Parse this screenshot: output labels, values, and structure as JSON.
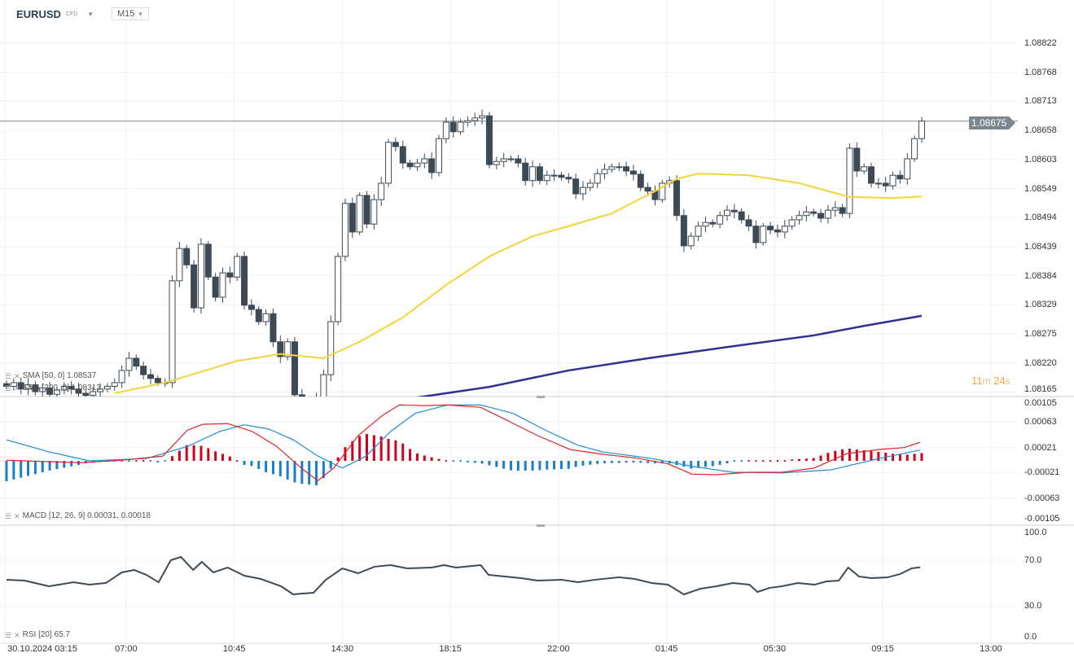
{
  "header": {
    "symbol": "EURUSD",
    "type": "CFD",
    "timeframe": "M15"
  },
  "price_axis": [
    "1.08822",
    "1.08768",
    "1.08713",
    "1.08658",
    "1.08603",
    "1.08549",
    "1.08494",
    "1.08439",
    "1.08384",
    "1.08329",
    "1.08275",
    "1.08220",
    "1.08165"
  ],
  "current_price": "1.08675",
  "current_price_value": 1.08675,
  "countdown": {
    "min": "11",
    "min_unit": "m",
    "sec": "24",
    "sec_unit": "s"
  },
  "indicators": {
    "sma50": "SMA [50, 0] 1.08537",
    "sma200": "SMA [200, 0] 1.08313",
    "macd": "MACD [12, 26, 9] 0.00031,  0.00018",
    "rsi": "RSI [20] 65.7"
  },
  "macd_axis": [
    "0.00105",
    "0.00063",
    "0.00021",
    "-0.00021",
    "-0.00063",
    "-0.00105"
  ],
  "rsi_axis": [
    "100.0",
    "70.0",
    "30.0",
    "0.0"
  ],
  "time_axis": [
    "30.10.2024  03:15",
    "07:00",
    "10:45",
    "14:30",
    "18:15",
    "22:00",
    "01:45",
    "05:30",
    "09:15",
    "13:00"
  ],
  "colors": {
    "bull": "#ffffff",
    "bear": "#3d4a55",
    "sma50": "#f5d33a",
    "sma200": "#2e3192",
    "macd": "#e0262a",
    "signal": "#1f8ad6",
    "hist_pos": "#d0021b",
    "hist_neg": "#1a7fc9",
    "rsi": "#3d4a55"
  },
  "chart_data": {
    "type": "candlestick",
    "closes": [
      1.08175,
      1.08182,
      1.0817,
      1.08178,
      1.08165,
      1.08172,
      1.0816,
      1.08168,
      1.08175,
      1.0817,
      1.08162,
      1.08158,
      1.08165,
      1.0817,
      1.08175,
      1.08182,
      1.08205,
      1.08228,
      1.08213,
      1.08197,
      1.0819,
      1.08182,
      1.08182,
      1.08374,
      1.08435,
      1.08404,
      1.08323,
      1.08443,
      1.08381,
      1.08343,
      1.08389,
      1.08381,
      1.0842,
      1.08328,
      1.0832,
      1.08297,
      1.08312,
      1.08259,
      1.08231,
      1.08259,
      1.08159,
      1.0815,
      1.08145,
      1.08155,
      1.08197,
      1.08297,
      1.0842,
      1.0852,
      1.08466,
      1.08535,
      1.08481,
      1.08527,
      1.08558,
      1.08635,
      1.08627,
      1.08596,
      1.08589,
      1.08596,
      1.08604,
      1.08578,
      1.08642,
      1.08673,
      1.08655,
      1.08673,
      1.08676,
      1.08681,
      1.08685,
      1.08593,
      1.08599,
      1.08604,
      1.08604,
      1.08596,
      1.08563,
      1.08589,
      1.08563,
      1.08573,
      1.08573,
      1.08569,
      1.08566,
      1.08538,
      1.0855,
      1.08558,
      1.08576,
      1.08584,
      1.08589,
      1.08589,
      1.08581,
      1.08575,
      1.0855,
      1.08543,
      1.08527,
      1.08558,
      1.08563,
      1.08497,
      1.0844,
      1.08458,
      1.08477,
      1.08484,
      1.08481,
      1.08497,
      1.08507,
      1.08504,
      1.08489,
      1.08477,
      1.08446,
      1.08477,
      1.0847,
      1.08466,
      1.08477,
      1.08489,
      1.08497,
      1.08504,
      1.08501,
      1.08492,
      1.08507,
      1.08512,
      1.08501,
      1.08624,
      1.08581,
      1.08589,
      1.08558,
      1.08558,
      1.08553,
      1.08573,
      1.08566,
      1.08604,
      1.08642,
      1.08675
    ],
    "sma50": [
      [
        15,
        1.08162
      ],
      [
        22,
        1.08182
      ],
      [
        32,
        1.08223
      ],
      [
        38,
        1.08236
      ],
      [
        44,
        1.08228
      ],
      [
        49,
        1.08259
      ],
      [
        55,
        1.08305
      ],
      [
        61,
        1.08366
      ],
      [
        67,
        1.0842
      ],
      [
        73,
        1.08458
      ],
      [
        78,
        1.08477
      ],
      [
        84,
        1.08501
      ],
      [
        90,
        1.08543
      ],
      [
        93,
        1.08566
      ],
      [
        96,
        1.08576
      ],
      [
        103,
        1.08573
      ],
      [
        110,
        1.08558
      ],
      [
        117,
        1.08532
      ],
      [
        123,
        1.0853
      ],
      [
        127,
        1.08533
      ]
    ],
    "sma200": [
      [
        57,
        1.08154
      ],
      [
        67,
        1.08174
      ],
      [
        78,
        1.08205
      ],
      [
        89,
        1.08228
      ],
      [
        101,
        1.08251
      ],
      [
        112,
        1.08271
      ],
      [
        119,
        1.08289
      ],
      [
        127,
        1.08308
      ]
    ],
    "macd": [
      [
        0,
        1e-05
      ],
      [
        10.4,
        -3e-05
      ],
      [
        16,
        1e-05
      ],
      [
        21.7,
        8e-05
      ],
      [
        25.1,
        0.00051
      ],
      [
        27.3,
        0.00061
      ],
      [
        30.7,
        0.00062
      ],
      [
        34.1,
        0.00049
      ],
      [
        37.5,
        0.00024
      ],
      [
        40.9,
        -0.00012
      ],
      [
        43.2,
        -0.00033
      ],
      [
        45.4,
        -0.00012
      ],
      [
        48.8,
        0.00042
      ],
      [
        52.2,
        0.00076
      ],
      [
        54.5,
        0.00093
      ],
      [
        57.9,
        0.00092
      ],
      [
        61.2,
        0.00093
      ],
      [
        65.8,
        0.00089
      ],
      [
        69.2,
        0.00069
      ],
      [
        73.7,
        0.00042
      ],
      [
        78.2,
        0.00019
      ],
      [
        82.7,
        0.00011
      ],
      [
        87.2,
        5e-05
      ],
      [
        91.8,
        -5e-05
      ],
      [
        95.1,
        -0.00022
      ],
      [
        98.5,
        -0.00023
      ],
      [
        103,
        -0.00019
      ],
      [
        107.6,
        -0.00019
      ],
      [
        112.1,
        -0.00012
      ],
      [
        116.6,
        0.00012
      ],
      [
        121.1,
        0.00019
      ],
      [
        124.5,
        0.00022
      ],
      [
        126.8,
        0.00031
      ]
    ],
    "signal": [
      [
        0,
        0.00035
      ],
      [
        5.9,
        0.00015
      ],
      [
        11.5,
        0
      ],
      [
        19.4,
        4e-05
      ],
      [
        25.1,
        0.00024
      ],
      [
        29.6,
        0.00049
      ],
      [
        33,
        0.0006
      ],
      [
        36.4,
        0.00053
      ],
      [
        39.8,
        0.00035
      ],
      [
        43.2,
        8e-05
      ],
      [
        46.6,
        -0.00012
      ],
      [
        49.9,
        8e-05
      ],
      [
        53.3,
        0.00049
      ],
      [
        56.7,
        0.00079
      ],
      [
        61.2,
        0.00093
      ],
      [
        65.8,
        0.00093
      ],
      [
        70.3,
        0.00079
      ],
      [
        74.8,
        0.00051
      ],
      [
        79.3,
        0.00026
      ],
      [
        82.7,
        0.00015
      ],
      [
        89.5,
        4e-05
      ],
      [
        95.1,
        -9e-05
      ],
      [
        100.8,
        -0.00019
      ],
      [
        107.6,
        -0.0002
      ],
      [
        114.4,
        -0.00015
      ],
      [
        121.1,
        4e-05
      ],
      [
        126.8,
        0.00018
      ]
    ],
    "rsi": [
      [
        0,
        53.8
      ],
      [
        2.5,
        53.1
      ],
      [
        5.9,
        47.7
      ],
      [
        9.3,
        51.5
      ],
      [
        11.5,
        49.2
      ],
      [
        13.8,
        50.8
      ],
      [
        16,
        60.8
      ],
      [
        17.7,
        63.1
      ],
      [
        19.4,
        58.5
      ],
      [
        21.1,
        51.5
      ],
      [
        22.8,
        72.3
      ],
      [
        24.2,
        75.4
      ],
      [
        25.9,
        63.1
      ],
      [
        27.1,
        70.8
      ],
      [
        28.7,
        60.8
      ],
      [
        30.7,
        65.4
      ],
      [
        33,
        57.7
      ],
      [
        35.3,
        54.6
      ],
      [
        38.1,
        47.7
      ],
      [
        39.8,
        40
      ],
      [
        40.9,
        40.8
      ],
      [
        42.6,
        41.5
      ],
      [
        44.3,
        53.8
      ],
      [
        46.6,
        64.6
      ],
      [
        48.8,
        60
      ],
      [
        51.1,
        66.2
      ],
      [
        53.3,
        67.7
      ],
      [
        55.6,
        64.6
      ],
      [
        59,
        65.4
      ],
      [
        60.7,
        67.7
      ],
      [
        62.4,
        65.4
      ],
      [
        65.8,
        67.7
      ],
      [
        66.9,
        58.5
      ],
      [
        71.4,
        55.4
      ],
      [
        73.7,
        53.1
      ],
      [
        77.1,
        53.8
      ],
      [
        79.3,
        51.5
      ],
      [
        81.6,
        53.8
      ],
      [
        85,
        56.2
      ],
      [
        87.2,
        54.6
      ],
      [
        89.5,
        50.8
      ],
      [
        91.8,
        49.2
      ],
      [
        94,
        40
      ],
      [
        96.3,
        45.4
      ],
      [
        98.5,
        47.7
      ],
      [
        100.8,
        50.8
      ],
      [
        103.1,
        49.2
      ],
      [
        104.2,
        42.3
      ],
      [
        105.9,
        46.2
      ],
      [
        107.6,
        47.7
      ],
      [
        109.8,
        50.8
      ],
      [
        112.1,
        49.2
      ],
      [
        113.8,
        52.3
      ],
      [
        115.5,
        53.1
      ],
      [
        116.8,
        65.4
      ],
      [
        118.3,
        56.9
      ],
      [
        120,
        55.4
      ],
      [
        122.3,
        56.2
      ],
      [
        124,
        59.2
      ],
      [
        125.6,
        64.6
      ],
      [
        126.8,
        65.7
      ]
    ],
    "ylim": [
      1.08165,
      1.08822
    ],
    "macd_ylim": [
      -0.00105,
      0.00105
    ],
    "rsi_ylim": [
      0,
      100
    ]
  }
}
